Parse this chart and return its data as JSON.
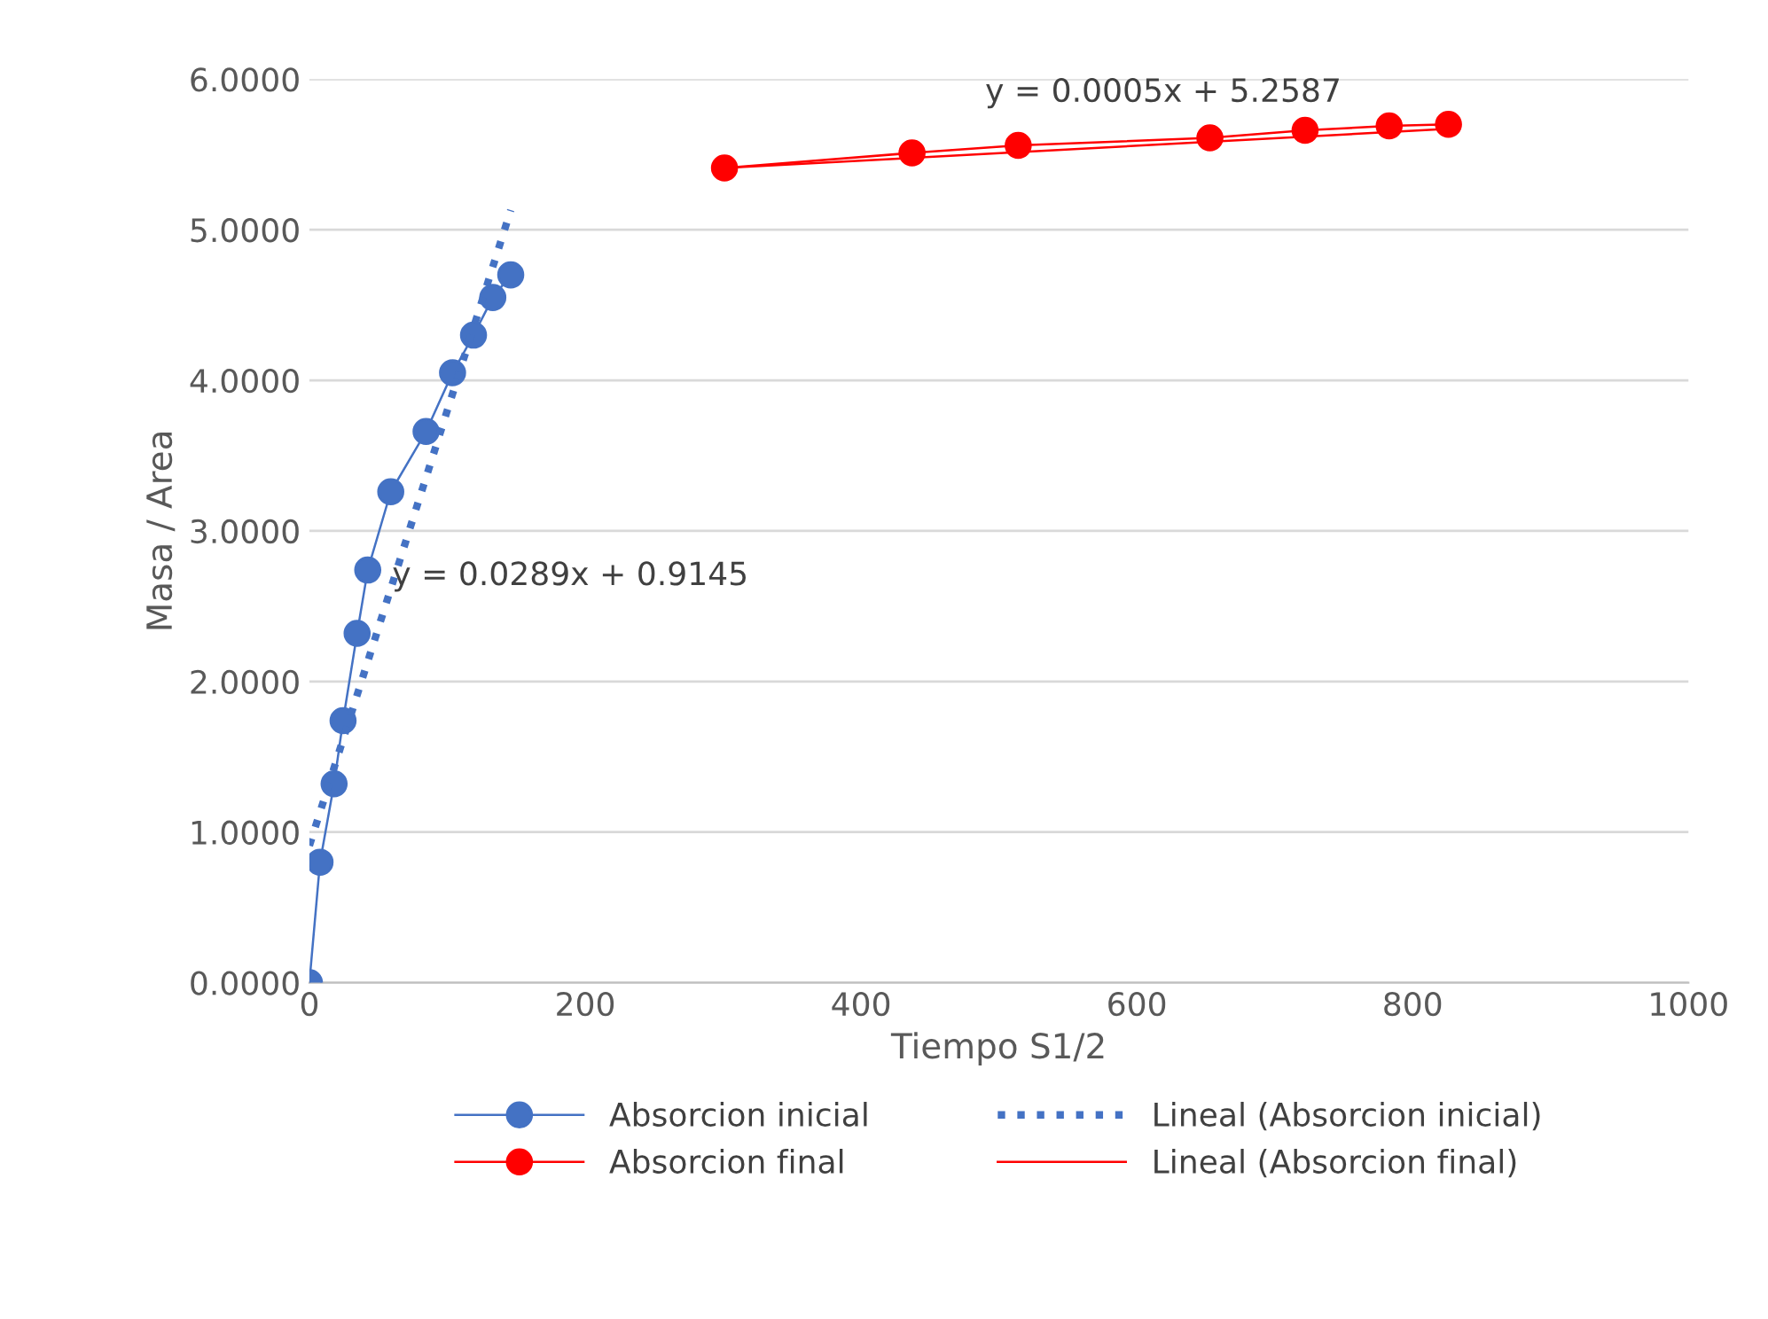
{
  "chart_data": {
    "type": "line",
    "xlabel": "Tiempo S1/2",
    "ylabel": "Masa / Area",
    "xlim": [
      0,
      1000
    ],
    "xticks": [
      0,
      200,
      400,
      600,
      800,
      1000
    ],
    "ylim": [
      0,
      6
    ],
    "yticks": [
      {
        "value": 0,
        "label": "0.0000"
      },
      {
        "value": 1,
        "label": "1.0000"
      },
      {
        "value": 2,
        "label": "2.0000"
      },
      {
        "value": 3,
        "label": "3.0000"
      },
      {
        "value": 4,
        "label": "4.0000"
      },
      {
        "value": 5,
        "label": "5.0000"
      },
      {
        "value": 6,
        "label": "6.0000"
      }
    ],
    "grid": "y",
    "legend": "bottom",
    "series": [
      {
        "name": "Absorcion inicial",
        "color": "#4472c4",
        "marker": "circle",
        "line_style": "solid",
        "x": [
          0,
          7.7,
          17.9,
          24.4,
          34.6,
          42.3,
          59,
          84.6,
          103.8,
          119,
          133,
          146
        ],
        "values": [
          0,
          0.8,
          1.32,
          1.74,
          2.32,
          2.74,
          3.26,
          3.66,
          4.05,
          4.3,
          4.55,
          4.7
        ]
      },
      {
        "name": "Absorcion final",
        "color": "#ff0000",
        "marker": "circle",
        "line_style": "solid",
        "x": [
          301,
          437,
          514,
          653,
          722,
          783,
          826
        ],
        "values": [
          5.41,
          5.51,
          5.56,
          5.61,
          5.66,
          5.69,
          5.7
        ]
      },
      {
        "name": "Lineal (Absorcion inicial)",
        "color": "#4472c4",
        "marker": "none",
        "line_style": "dotted",
        "x": [
          0,
          146
        ],
        "values": [
          0.91,
          5.13
        ]
      },
      {
        "name": "Lineal (Absorcion final)",
        "color": "#ff0000",
        "marker": "none",
        "line_style": "solid",
        "x": [
          301,
          826
        ],
        "values": [
          5.41,
          5.67
        ]
      }
    ],
    "annotations": [
      "y = 0.0289x + 0.9145",
      "y = 0.0005x + 5.2587"
    ]
  }
}
